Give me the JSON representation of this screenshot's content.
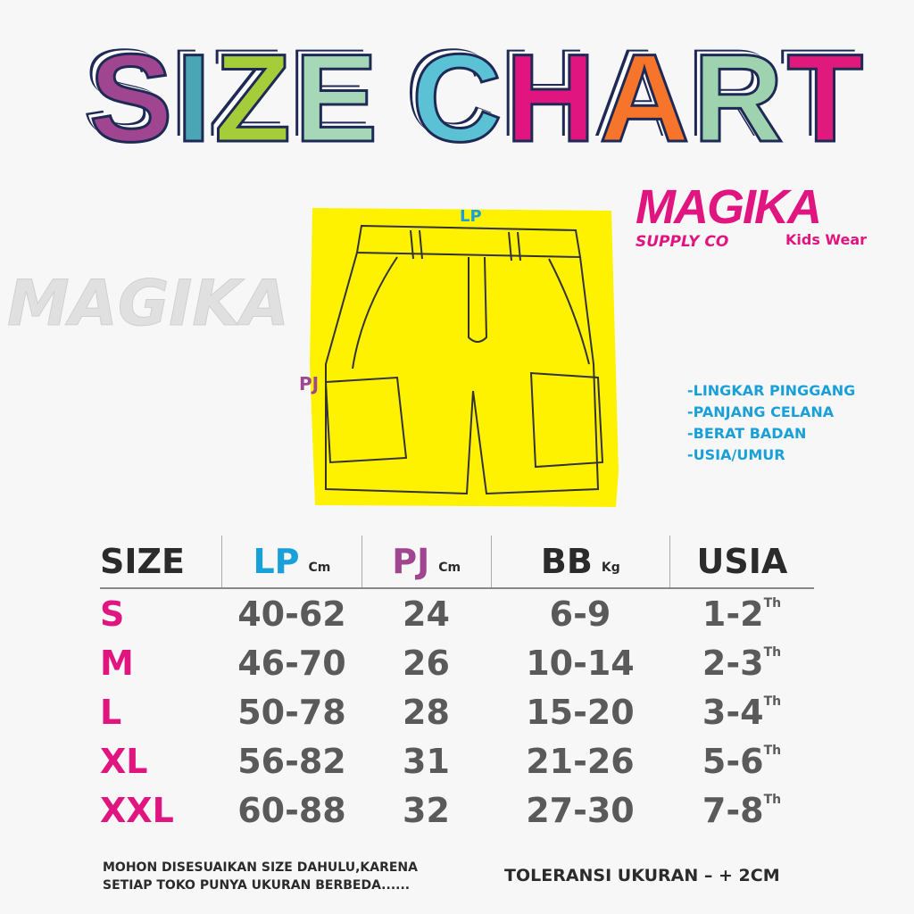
{
  "watermark": "MAGIKA",
  "title": {
    "letters": [
      {
        "ch": "S",
        "color": "#a0458f"
      },
      {
        "ch": "I",
        "color": "#4aa5b5"
      },
      {
        "ch": "Z",
        "color": "#a5cd39"
      },
      {
        "ch": "E",
        "color": "#a6d8b8"
      },
      {
        "ch": " ",
        "color": "#000000"
      },
      {
        "ch": "C",
        "color": "#5bc2d6"
      },
      {
        "ch": "H",
        "color": "#e0157f"
      },
      {
        "ch": "A",
        "color": "#f7752b"
      },
      {
        "ch": "R",
        "color": "#9fd3b0"
      },
      {
        "ch": "T",
        "color": "#e01a7d"
      }
    ]
  },
  "logo": {
    "name": "MAGIKA",
    "sub": "SUPPLY CO",
    "tag": "Kids Wear",
    "color": "#e0157f"
  },
  "diagram": {
    "lp": "LP",
    "pj": "PJ",
    "fill": "#fff200"
  },
  "legend": [
    "-LINGKAR PINGGANG",
    "-PANJANG CELANA",
    "-BERAT BADAN",
    "-USIA/UMUR"
  ],
  "table": {
    "headers": [
      {
        "label": "SIZE",
        "unit": "",
        "color": "#2b2b2b"
      },
      {
        "label": "LP",
        "unit": "Cm",
        "color": "#1aa0d8"
      },
      {
        "label": "PJ",
        "unit": "Cm",
        "color": "#a0458f"
      },
      {
        "label": "BB",
        "unit": "Kg",
        "color": "#2b2b2b"
      },
      {
        "label": "USIA",
        "unit": "",
        "color": "#2b2b2b"
      }
    ],
    "rows": [
      {
        "size": "S",
        "lp": "40-62",
        "pj": "24",
        "bb": "6-9",
        "usia": "1-2",
        "suffix": "Th"
      },
      {
        "size": "M",
        "lp": "46-70",
        "pj": "26",
        "bb": "10-14",
        "usia": "2-3",
        "suffix": "Th"
      },
      {
        "size": "L",
        "lp": "50-78",
        "pj": "28",
        "bb": "15-20",
        "usia": "3-4",
        "suffix": "Th"
      },
      {
        "size": "XL",
        "lp": "56-82",
        "pj": "31",
        "bb": "21-26",
        "usia": "5-6",
        "suffix": "Th"
      },
      {
        "size": "XXL",
        "lp": "60-88",
        "pj": "32",
        "bb": "27-30",
        "usia": "7-8",
        "suffix": "Th"
      }
    ]
  },
  "note": {
    "line1": "MOHON DISESUAIKAN SIZE DAHULU,KARENA",
    "line2": "SETIAP TOKO PUNYA UKURAN BERBEDA......"
  },
  "tolerance": "TOLERANSI UKURAN  – + 2CM"
}
